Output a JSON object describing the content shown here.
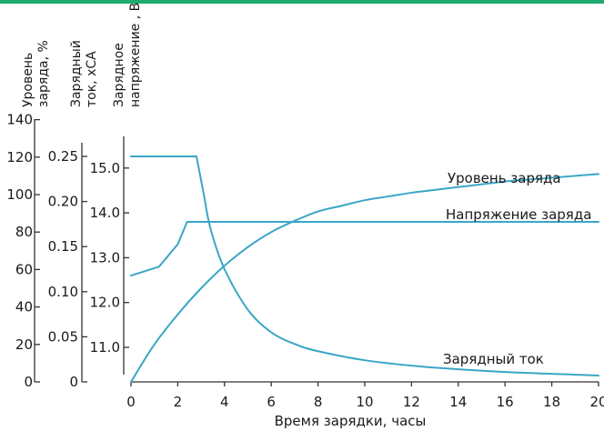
{
  "colors": {
    "top_bar": "#1faa6e",
    "curve": "#3aa6c6",
    "axis": "#333333",
    "text": "#1a1a1a"
  },
  "chart_data": {
    "type": "line",
    "title": "",
    "xlabel": "Время зарядки, часы",
    "xlim": [
      0,
      20
    ],
    "x_ticks": [
      "0",
      "2",
      "4",
      "6",
      "8",
      "10",
      "12",
      "14",
      "16",
      "18",
      "20"
    ],
    "grid": false,
    "legend": "inline labels at curve ends",
    "axes": [
      {
        "id": "level",
        "label_lines": [
          "Уровень",
          "заряда, %"
        ],
        "ylim": [
          0,
          140
        ],
        "ticks": [
          "0",
          "20",
          "40",
          "60",
          "80",
          "100",
          "120",
          "140"
        ]
      },
      {
        "id": "current",
        "label_lines": [
          "Зарядный",
          "ток, xCA"
        ],
        "ylim": [
          0,
          0.28
        ],
        "ticks": [
          "0",
          "0.05",
          "0.10",
          "0.15",
          "0.20",
          "0.25"
        ]
      },
      {
        "id": "voltage",
        "label_lines": [
          "Зарядное",
          "напряжение , В"
        ],
        "ylim": [
          10.2,
          16.0
        ],
        "ticks": [
          "11.0",
          "12.0",
          "13.0",
          "14.0",
          "15.0"
        ]
      }
    ],
    "series": [
      {
        "name": "Уровень заряда",
        "axis": "level",
        "x": [
          0,
          1,
          2,
          3,
          4,
          5,
          6,
          7,
          8,
          9,
          10,
          11,
          12,
          13,
          14,
          15,
          16,
          17,
          18,
          19,
          20
        ],
        "y": [
          0,
          20,
          36,
          50,
          62,
          72,
          80,
          86,
          91,
          94,
          97,
          99,
          101,
          102.5,
          104,
          105.5,
          107,
          108,
          109,
          110,
          111
        ]
      },
      {
        "name": "Напряжение заряда",
        "axis": "voltage",
        "x": [
          0,
          1.2,
          2.0,
          2.4,
          3.0,
          6,
          10,
          14,
          18,
          20
        ],
        "y": [
          12.6,
          12.8,
          13.3,
          13.8,
          13.8,
          13.8,
          13.8,
          13.8,
          13.8,
          13.8
        ]
      },
      {
        "name": "Зарядный ток",
        "axis": "current",
        "x": [
          0,
          1,
          2,
          2.8,
          3.1,
          3.4,
          4,
          5,
          6,
          7,
          8,
          10,
          12,
          14,
          16,
          18,
          20
        ],
        "y": [
          0.25,
          0.25,
          0.25,
          0.25,
          0.21,
          0.17,
          0.125,
          0.08,
          0.055,
          0.042,
          0.034,
          0.024,
          0.018,
          0.014,
          0.011,
          0.009,
          0.007
        ]
      }
    ]
  }
}
